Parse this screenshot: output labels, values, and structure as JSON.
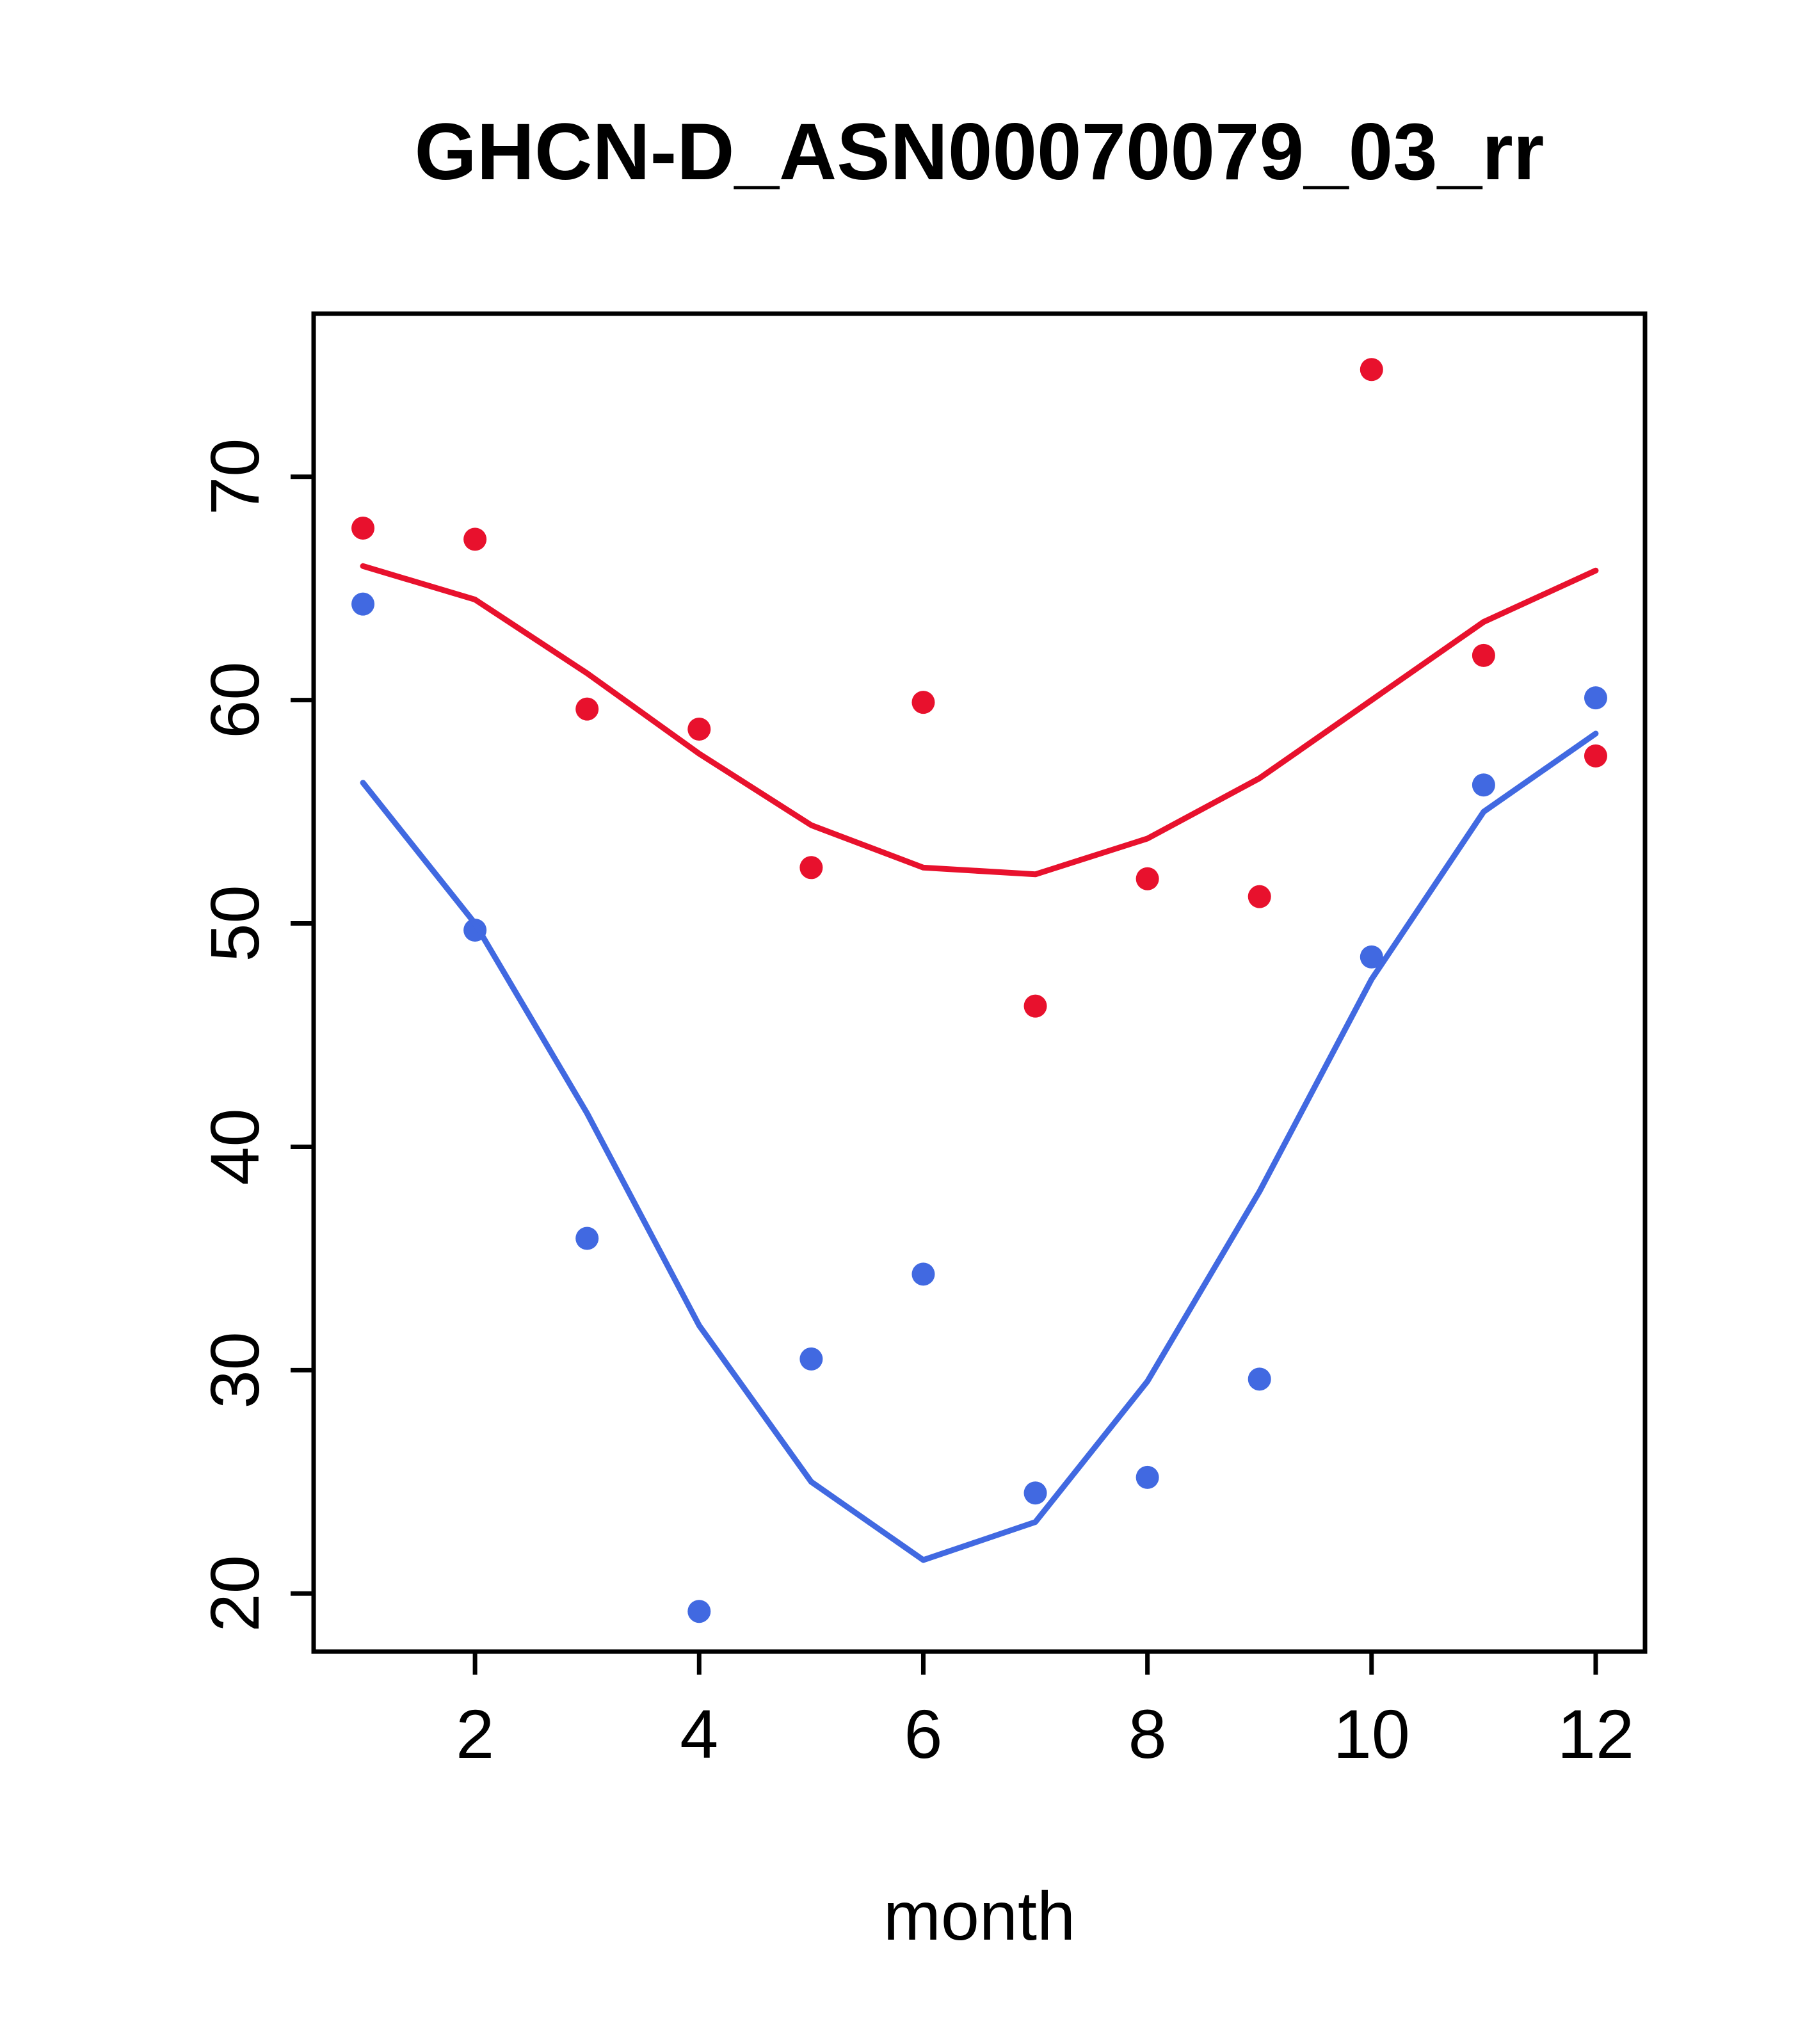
{
  "chart_data": {
    "type": "scatter",
    "title": "GHCN-D_ASN00070079_03_rr",
    "xlabel": "month",
    "ylabel": "",
    "xlim": [
      0.56,
      12.44
    ],
    "ylim": [
      17.4,
      77.3
    ],
    "x_ticks": [
      2,
      4,
      6,
      8,
      10,
      12
    ],
    "y_ticks": [
      20,
      30,
      40,
      50,
      60,
      70
    ],
    "grid": "off",
    "legend": "none",
    "x": [
      1,
      2,
      3,
      4,
      5,
      6,
      7,
      8,
      9,
      10,
      11,
      12
    ],
    "series": [
      {
        "name": "red-points",
        "kind": "points",
        "color": "#e8112d",
        "values": [
          67.7,
          67.2,
          59.6,
          58.7,
          52.5,
          59.9,
          46.3,
          52.0,
          51.2,
          74.8,
          62.0,
          57.5
        ]
      },
      {
        "name": "red-smooth-line",
        "kind": "line",
        "color": "#e8112d",
        "values": [
          66.0,
          64.5,
          61.2,
          57.6,
          54.4,
          52.5,
          52.2,
          53.8,
          56.5,
          60.0,
          63.5,
          65.8
        ]
      },
      {
        "name": "blue-points",
        "kind": "points",
        "color": "#4169e1",
        "values": [
          64.3,
          49.7,
          35.9,
          19.2,
          30.5,
          34.3,
          24.5,
          25.2,
          29.6,
          48.5,
          56.2,
          60.1
        ]
      },
      {
        "name": "blue-smooth-line",
        "kind": "line",
        "color": "#4169e1",
        "values": [
          56.3,
          50.0,
          41.5,
          32.0,
          25.0,
          21.5,
          23.2,
          29.5,
          38.0,
          47.5,
          55.0,
          58.5
        ]
      }
    ],
    "colors": {
      "box": "#000000",
      "background": "#ffffff"
    }
  }
}
